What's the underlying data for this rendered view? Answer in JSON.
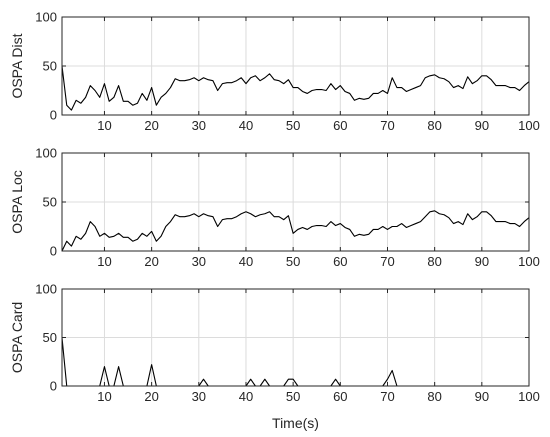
{
  "chart_data": [
    {
      "type": "line",
      "ylabel": "OSPA Dist",
      "xlabel": "",
      "xlim": [
        1,
        100
      ],
      "ylim": [
        0,
        100
      ],
      "xticks": [
        10,
        20,
        30,
        40,
        50,
        60,
        70,
        80,
        90,
        100
      ],
      "yticks": [
        0,
        50,
        100
      ],
      "grid": true,
      "series": [
        {
          "color": "#000000",
          "x": [
            1,
            2,
            3,
            4,
            5,
            6,
            7,
            8,
            9,
            10,
            11,
            12,
            13,
            14,
            15,
            16,
            17,
            18,
            19,
            20,
            21,
            22,
            23,
            24,
            25,
            26,
            27,
            28,
            29,
            30,
            31,
            32,
            33,
            34,
            35,
            36,
            37,
            38,
            39,
            40,
            41,
            42,
            43,
            44,
            45,
            46,
            47,
            48,
            49,
            50,
            51,
            52,
            53,
            54,
            55,
            56,
            57,
            58,
            59,
            60,
            61,
            62,
            63,
            64,
            65,
            66,
            67,
            68,
            69,
            70,
            71,
            72,
            73,
            74,
            75,
            76,
            77,
            78,
            79,
            80,
            81,
            82,
            83,
            84,
            85,
            86,
            87,
            88,
            89,
            90,
            91,
            92,
            93,
            94,
            95,
            96,
            97,
            98,
            99,
            100
          ],
          "y": [
            50,
            10,
            5,
            15,
            12,
            18,
            30,
            25,
            18,
            32,
            14,
            18,
            30,
            14,
            14,
            10,
            12,
            22,
            15,
            28,
            10,
            18,
            22,
            28,
            37,
            35,
            35,
            36,
            38,
            35,
            38,
            36,
            35,
            25,
            32,
            33,
            33,
            35,
            38,
            32,
            38,
            40,
            35,
            38,
            42,
            36,
            35,
            32,
            36,
            28,
            28,
            24,
            22,
            25,
            26,
            26,
            25,
            32,
            26,
            30,
            24,
            22,
            15,
            17,
            16,
            17,
            22,
            22,
            25,
            22,
            38,
            28,
            28,
            24,
            26,
            28,
            30,
            38,
            40,
            41,
            38,
            37,
            34,
            28,
            30,
            27,
            39,
            32,
            35,
            40,
            40,
            36,
            30,
            30,
            30,
            28,
            28,
            25,
            30,
            34
          ]
        }
      ]
    },
    {
      "type": "line",
      "ylabel": "OSPA Loc",
      "xlabel": "",
      "xlim": [
        1,
        100
      ],
      "ylim": [
        0,
        100
      ],
      "xticks": [
        10,
        20,
        30,
        40,
        50,
        60,
        70,
        80,
        90,
        100
      ],
      "yticks": [
        0,
        50,
        100
      ],
      "grid": true,
      "series": [
        {
          "color": "#000000",
          "x": [
            1,
            2,
            3,
            4,
            5,
            6,
            7,
            8,
            9,
            10,
            11,
            12,
            13,
            14,
            15,
            16,
            17,
            18,
            19,
            20,
            21,
            22,
            23,
            24,
            25,
            26,
            27,
            28,
            29,
            30,
            31,
            32,
            33,
            34,
            35,
            36,
            37,
            38,
            39,
            40,
            41,
            42,
            43,
            44,
            45,
            46,
            47,
            48,
            49,
            50,
            51,
            52,
            53,
            54,
            55,
            56,
            57,
            58,
            59,
            60,
            61,
            62,
            63,
            64,
            65,
            66,
            67,
            68,
            69,
            70,
            71,
            72,
            73,
            74,
            75,
            76,
            77,
            78,
            79,
            80,
            81,
            82,
            83,
            84,
            85,
            86,
            87,
            88,
            89,
            90,
            91,
            92,
            93,
            94,
            95,
            96,
            97,
            98,
            99,
            100
          ],
          "y": [
            0,
            10,
            5,
            15,
            12,
            18,
            30,
            25,
            15,
            18,
            14,
            15,
            18,
            14,
            14,
            10,
            12,
            18,
            15,
            20,
            10,
            15,
            25,
            30,
            37,
            35,
            35,
            36,
            38,
            35,
            38,
            36,
            35,
            25,
            32,
            33,
            33,
            35,
            38,
            40,
            38,
            35,
            37,
            38,
            40,
            35,
            35,
            32,
            36,
            18,
            22,
            24,
            22,
            25,
            26,
            26,
            25,
            30,
            26,
            28,
            24,
            22,
            15,
            17,
            16,
            17,
            22,
            22,
            25,
            22,
            25,
            25,
            28,
            24,
            26,
            28,
            30,
            35,
            40,
            41,
            38,
            37,
            34,
            28,
            30,
            27,
            38,
            32,
            35,
            40,
            40,
            36,
            30,
            30,
            30,
            28,
            28,
            25,
            30,
            34
          ]
        }
      ]
    },
    {
      "type": "line",
      "ylabel": "OSPA Card",
      "xlabel": "Time(s)",
      "xlim": [
        1,
        100
      ],
      "ylim": [
        0,
        100
      ],
      "xticks": [
        10,
        20,
        30,
        40,
        50,
        60,
        70,
        80,
        90,
        100
      ],
      "yticks": [
        0,
        50,
        100
      ],
      "grid": true,
      "series": [
        {
          "color": "#000000",
          "x": [
            1,
            2,
            3,
            4,
            5,
            6,
            7,
            8,
            9,
            10,
            11,
            12,
            13,
            14,
            15,
            16,
            17,
            18,
            19,
            20,
            21,
            22,
            23,
            24,
            25,
            26,
            27,
            28,
            29,
            30,
            31,
            32,
            33,
            34,
            35,
            36,
            37,
            38,
            39,
            40,
            41,
            42,
            43,
            44,
            45,
            46,
            47,
            48,
            49,
            50,
            51,
            52,
            53,
            54,
            55,
            56,
            57,
            58,
            59,
            60,
            61,
            62,
            63,
            64,
            65,
            66,
            67,
            68,
            69,
            70,
            71,
            72,
            73,
            74,
            75,
            76,
            77,
            78,
            79,
            80,
            81,
            82,
            83,
            84,
            85,
            86,
            87,
            88,
            89,
            90,
            91,
            92,
            93,
            94,
            95,
            96,
            97,
            98,
            99,
            100
          ],
          "y": [
            50,
            0,
            0,
            0,
            0,
            0,
            0,
            0,
            0,
            20,
            0,
            0,
            20,
            0,
            0,
            0,
            0,
            0,
            0,
            22,
            0,
            0,
            0,
            0,
            0,
            0,
            0,
            0,
            0,
            0,
            7,
            0,
            0,
            0,
            0,
            0,
            0,
            0,
            0,
            0,
            7,
            0,
            0,
            7,
            0,
            0,
            0,
            0,
            7,
            7,
            0,
            0,
            0,
            0,
            0,
            0,
            0,
            0,
            7,
            0,
            0,
            0,
            0,
            0,
            0,
            0,
            0,
            0,
            0,
            7,
            16,
            0,
            0,
            0,
            0,
            0,
            0,
            0,
            0,
            0,
            0,
            0,
            0,
            0,
            0,
            0,
            0,
            0,
            0,
            0,
            0,
            0,
            0,
            0,
            0,
            0,
            0,
            0,
            0,
            0
          ]
        }
      ]
    }
  ]
}
